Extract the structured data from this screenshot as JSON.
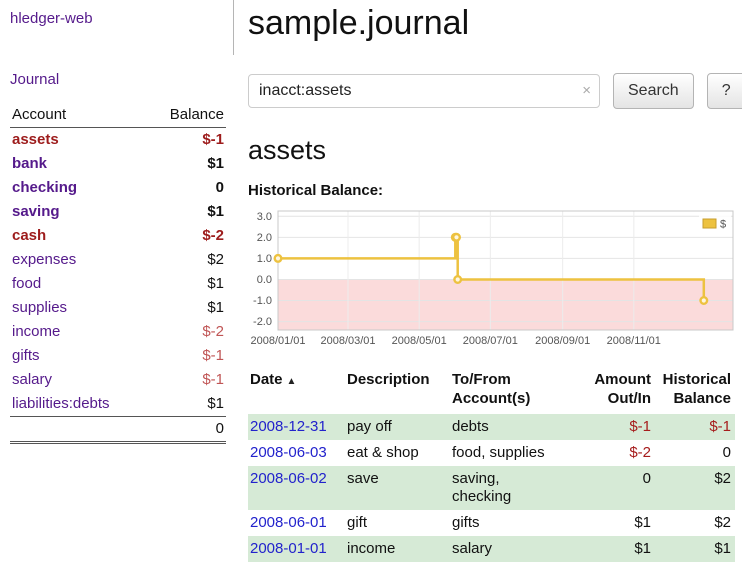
{
  "colors": {
    "link_purple": "#551a8b",
    "date_blue": "#2222cc",
    "negative_dark": "#9d1c1c",
    "negative_soft": "#c05555",
    "row_green": "#d6ead6",
    "chart_gold": "#edc240",
    "chart_negative_bg": "#fbdbdb",
    "register_negative": "#a61c1c"
  },
  "sidebar": {
    "app_title": "hledger-web",
    "journal_link": "Journal",
    "table": {
      "account_header": "Account",
      "balance_header": "Balance",
      "rows": [
        {
          "name": "assets",
          "balance": "$-1",
          "depth": 0,
          "bold": true,
          "name_neg": true,
          "bal_neg": "dark"
        },
        {
          "name": "bank",
          "balance": "$1",
          "depth": 1,
          "bold": true,
          "name_neg": false,
          "bal_neg": "none"
        },
        {
          "name": "checking",
          "balance": "0",
          "depth": 2,
          "bold": true,
          "name_neg": false,
          "bal_neg": "none"
        },
        {
          "name": "saving",
          "balance": "$1",
          "depth": 2,
          "bold": true,
          "name_neg": false,
          "bal_neg": "none"
        },
        {
          "name": "cash",
          "balance": "$-2",
          "depth": 1,
          "bold": true,
          "name_neg": true,
          "bal_neg": "dark"
        },
        {
          "name": "expenses",
          "balance": "$2",
          "depth": 0,
          "bold": false,
          "name_neg": false,
          "bal_neg": "none"
        },
        {
          "name": "food",
          "balance": "$1",
          "depth": 1,
          "bold": false,
          "name_neg": false,
          "bal_neg": "none"
        },
        {
          "name": "supplies",
          "balance": "$1",
          "depth": 1,
          "bold": false,
          "name_neg": false,
          "bal_neg": "none"
        },
        {
          "name": "income",
          "balance": "$-2",
          "depth": 0,
          "bold": false,
          "name_neg": false,
          "bal_neg": "soft"
        },
        {
          "name": "gifts",
          "balance": "$-1",
          "depth": 1,
          "bold": false,
          "name_neg": false,
          "bal_neg": "soft"
        },
        {
          "name": "salary",
          "balance": "$-1",
          "depth": 1,
          "bold": false,
          "name_neg": false,
          "bal_neg": "soft"
        },
        {
          "name": "liabilities:debts",
          "balance": "$1",
          "depth": 0,
          "bold": false,
          "name_neg": false,
          "bal_neg": "none"
        }
      ],
      "total": "0"
    }
  },
  "main": {
    "title": "sample.journal",
    "search": {
      "value": "inacct:assets",
      "clear_icon": "×",
      "button_label": "Search",
      "help_label": "?"
    },
    "account_title": "assets",
    "chart_label": "Historical Balance:"
  },
  "chart_data": {
    "type": "line",
    "title": "Historical Balance",
    "legend": {
      "label": "$",
      "position": "top-right"
    },
    "ylim": [
      -2.4,
      3.25
    ],
    "x_domain_days": 390,
    "grid": true,
    "yticks": [
      {
        "label": "3.0",
        "value": 3
      },
      {
        "label": "2.0",
        "value": 2
      },
      {
        "label": "1.0",
        "value": 1
      },
      {
        "label": "0.0",
        "value": 0
      },
      {
        "label": "-1.0",
        "value": -1
      },
      {
        "label": "-2.0",
        "value": -2
      }
    ],
    "xticks": [
      {
        "label": "2008/01/01",
        "day": 0
      },
      {
        "label": "2008/03/01",
        "day": 60
      },
      {
        "label": "2008/05/01",
        "day": 121
      },
      {
        "label": "2008/07/01",
        "day": 182
      },
      {
        "label": "2008/09/01",
        "day": 244
      },
      {
        "label": "2008/11/01",
        "day": 305
      }
    ],
    "series": [
      {
        "name": "$",
        "style": "step-after",
        "points": [
          {
            "date": "2008-01-01",
            "day": 0,
            "value": 1.0
          },
          {
            "date": "2008-06-01",
            "day": 152,
            "value": 2.0
          },
          {
            "date": "2008-06-02",
            "day": 153,
            "value": 2.0
          },
          {
            "date": "2008-06-03",
            "day": 154,
            "value": 0.0
          },
          {
            "date": "2008-12-31",
            "day": 365,
            "value": -1.0
          }
        ]
      }
    ]
  },
  "register": {
    "headers": {
      "date": "Date",
      "description": "Description",
      "accounts": "To/From\nAccount(s)",
      "amount": "Amount\nOut/In",
      "balance": "Historical\nBalance"
    },
    "sort_icon": "▲",
    "rows": [
      {
        "date": "2008-12-31",
        "description": "pay off",
        "accounts": "debts",
        "amount": "$-1",
        "amount_neg": true,
        "balance": "$-1",
        "balance_neg": true,
        "shaded": true
      },
      {
        "date": "2008-06-03",
        "description": "eat & shop",
        "accounts": "food, supplies",
        "amount": "$-2",
        "amount_neg": true,
        "balance": "0",
        "balance_neg": false,
        "shaded": false
      },
      {
        "date": "2008-06-02",
        "description": "save",
        "accounts": "saving,\nchecking",
        "amount": "0",
        "amount_neg": false,
        "balance": "$2",
        "balance_neg": false,
        "shaded": true
      },
      {
        "date": "2008-06-01",
        "description": "gift",
        "accounts": "gifts",
        "amount": "$1",
        "amount_neg": false,
        "balance": "$2",
        "balance_neg": false,
        "shaded": false
      },
      {
        "date": "2008-01-01",
        "description": "income",
        "accounts": "salary",
        "amount": "$1",
        "amount_neg": false,
        "balance": "$1",
        "balance_neg": false,
        "shaded": true
      }
    ]
  }
}
